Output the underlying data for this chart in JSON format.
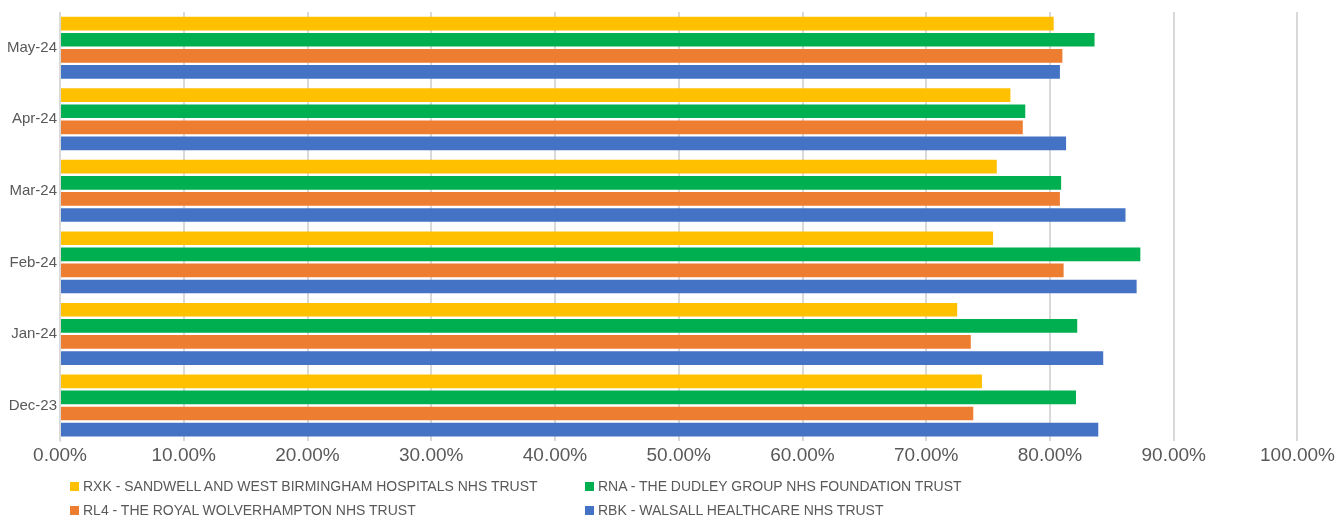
{
  "chart_data": {
    "type": "bar",
    "orientation": "horizontal",
    "categories": [
      "May-24",
      "Apr-24",
      "Mar-24",
      "Feb-24",
      "Jan-24",
      "Dec-23"
    ],
    "series": [
      {
        "name": "RXK - SANDWELL AND WEST BIRMINGHAM HOSPITALS NHS TRUST",
        "color": "#ffc000",
        "values": [
          80.3,
          76.8,
          75.7,
          75.4,
          72.5,
          74.5
        ]
      },
      {
        "name": "RNA - THE DUDLEY GROUP NHS FOUNDATION TRUST",
        "color": "#00b050",
        "values": [
          83.6,
          78.0,
          80.9,
          87.3,
          82.2,
          82.1
        ]
      },
      {
        "name": "RL4 - THE ROYAL WOLVERHAMPTON NHS TRUST",
        "color": "#ed7d31",
        "values": [
          81.0,
          77.8,
          80.8,
          81.1,
          73.6,
          73.8
        ]
      },
      {
        "name": "RBK - WALSALL HEALTHCARE NHS TRUST",
        "color": "#4472c4",
        "values": [
          80.8,
          81.3,
          86.1,
          87.0,
          84.3,
          83.9
        ]
      }
    ],
    "xlim": [
      0,
      100
    ],
    "xticks": [
      {
        "value": 0,
        "label": "0.00%"
      },
      {
        "value": 10,
        "label": "10.00%"
      },
      {
        "value": 20,
        "label": "20.00%"
      },
      {
        "value": 30,
        "label": "30.00%"
      },
      {
        "value": 40,
        "label": "40.00%"
      },
      {
        "value": 50,
        "label": "50.00%"
      },
      {
        "value": 60,
        "label": "60.00%"
      },
      {
        "value": 70,
        "label": "70.00%"
      },
      {
        "value": 80,
        "label": "80.00%"
      },
      {
        "value": 90,
        "label": "90.00%"
      },
      {
        "value": 100,
        "label": "100.00%"
      }
    ],
    "grid": "x",
    "legend": "bottom"
  }
}
